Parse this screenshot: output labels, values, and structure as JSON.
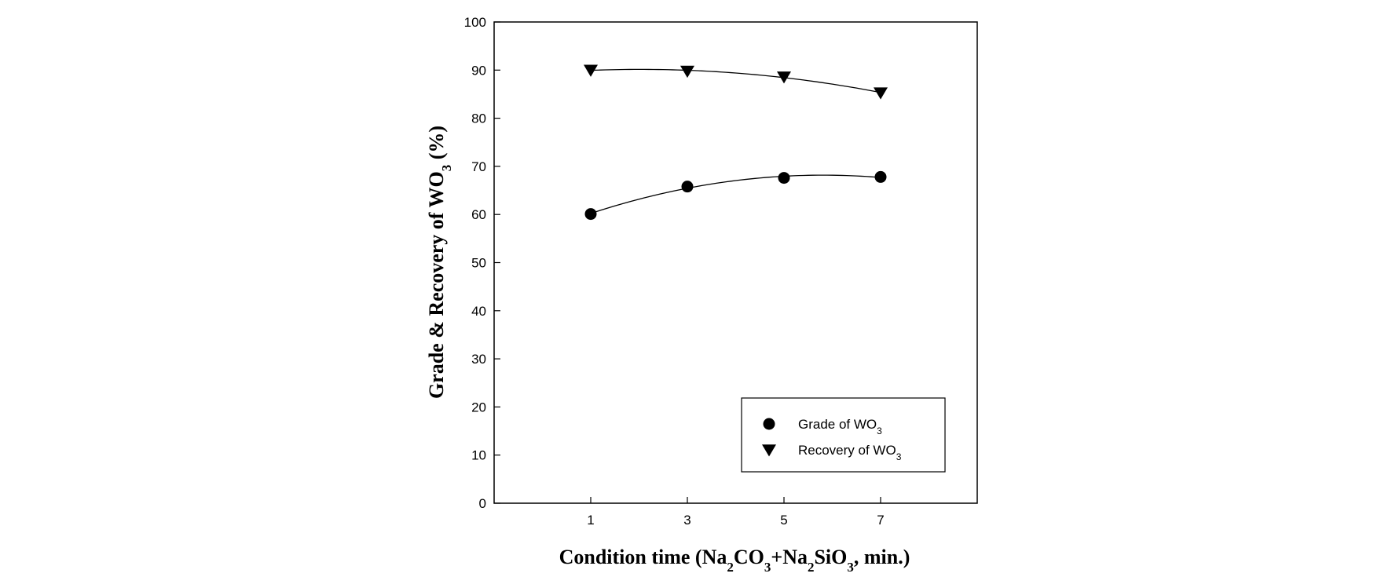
{
  "chart_data": {
    "type": "scatter",
    "x_ticks": [
      1,
      3,
      5,
      7
    ],
    "xlim": [
      -1,
      9
    ],
    "y_ticks": [
      0,
      10,
      20,
      30,
      40,
      50,
      60,
      70,
      80,
      90,
      100
    ],
    "ylim": [
      0,
      100
    ],
    "grid": false,
    "legend_position": "bottom-right",
    "xlabel": {
      "parts": [
        {
          "t": "Condition time (Na"
        },
        {
          "t": "2",
          "sub": true
        },
        {
          "t": "CO"
        },
        {
          "t": "3",
          "sub": true
        },
        {
          "t": "+Na"
        },
        {
          "t": "2",
          "sub": true
        },
        {
          "t": "SiO"
        },
        {
          "t": "3",
          "sub": true
        },
        {
          "t": ", min.)"
        }
      ]
    },
    "ylabel": {
      "parts": [
        {
          "t": "Grade & Recovery of WO"
        },
        {
          "t": "3",
          "sub": true
        },
        {
          "t": " (%)"
        }
      ]
    },
    "series": [
      {
        "key": "grade",
        "name_parts": [
          {
            "t": "Grade of WO"
          },
          {
            "t": "3",
            "sub": true
          }
        ],
        "marker": "circle",
        "color": "#000000",
        "x": [
          1,
          3,
          5,
          7
        ],
        "y": [
          60.1,
          65.8,
          67.6,
          67.8
        ]
      },
      {
        "key": "recovery",
        "name_parts": [
          {
            "t": "Recovery of WO"
          },
          {
            "t": "3",
            "sub": true
          }
        ],
        "marker": "triangle-down",
        "color": "#000000",
        "x": [
          1,
          3,
          5,
          7
        ],
        "y": [
          90.0,
          89.8,
          88.6,
          85.3
        ]
      }
    ]
  }
}
